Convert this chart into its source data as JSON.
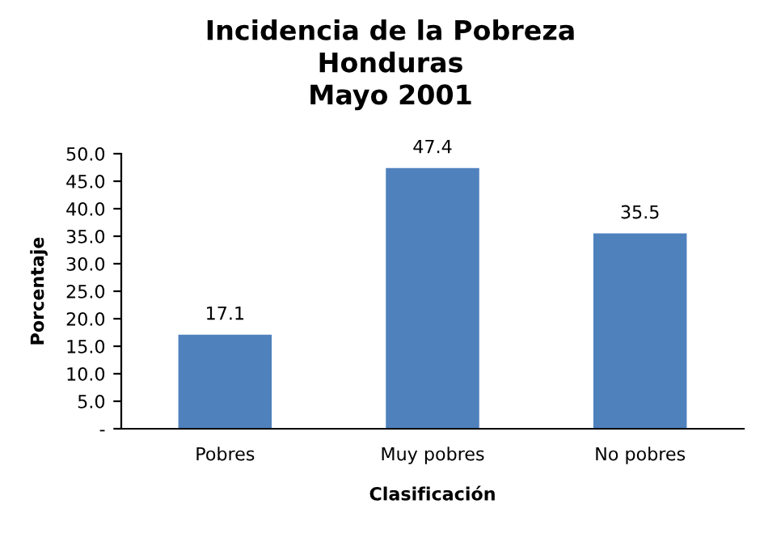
{
  "chart_data": {
    "type": "bar",
    "title": "Incidencia de la Pobreza\nHonduras\nMayo 2001",
    "xlabel": "Clasificación",
    "ylabel": "Porcentaje",
    "categories": [
      "Pobres",
      "Muy pobres",
      "No pobres"
    ],
    "values": [
      17.1,
      47.4,
      35.5
    ],
    "color": "#4f81bd",
    "data_labels": true,
    "grid": false,
    "legend": false,
    "ylim": [
      0,
      50
    ],
    "yticks": [
      {
        "value": 0,
        "label": "-"
      },
      {
        "value": 5,
        "label": "5.0"
      },
      {
        "value": 10,
        "label": "10.0"
      },
      {
        "value": 15,
        "label": "15.0"
      },
      {
        "value": 20,
        "label": "20.0"
      },
      {
        "value": 25,
        "label": "25.0"
      },
      {
        "value": 30,
        "label": "30.0"
      },
      {
        "value": 35,
        "label": "35.0"
      },
      {
        "value": 40,
        "label": "40.0"
      },
      {
        "value": 45,
        "label": "45.0"
      },
      {
        "value": 50,
        "label": "50.0"
      }
    ]
  }
}
